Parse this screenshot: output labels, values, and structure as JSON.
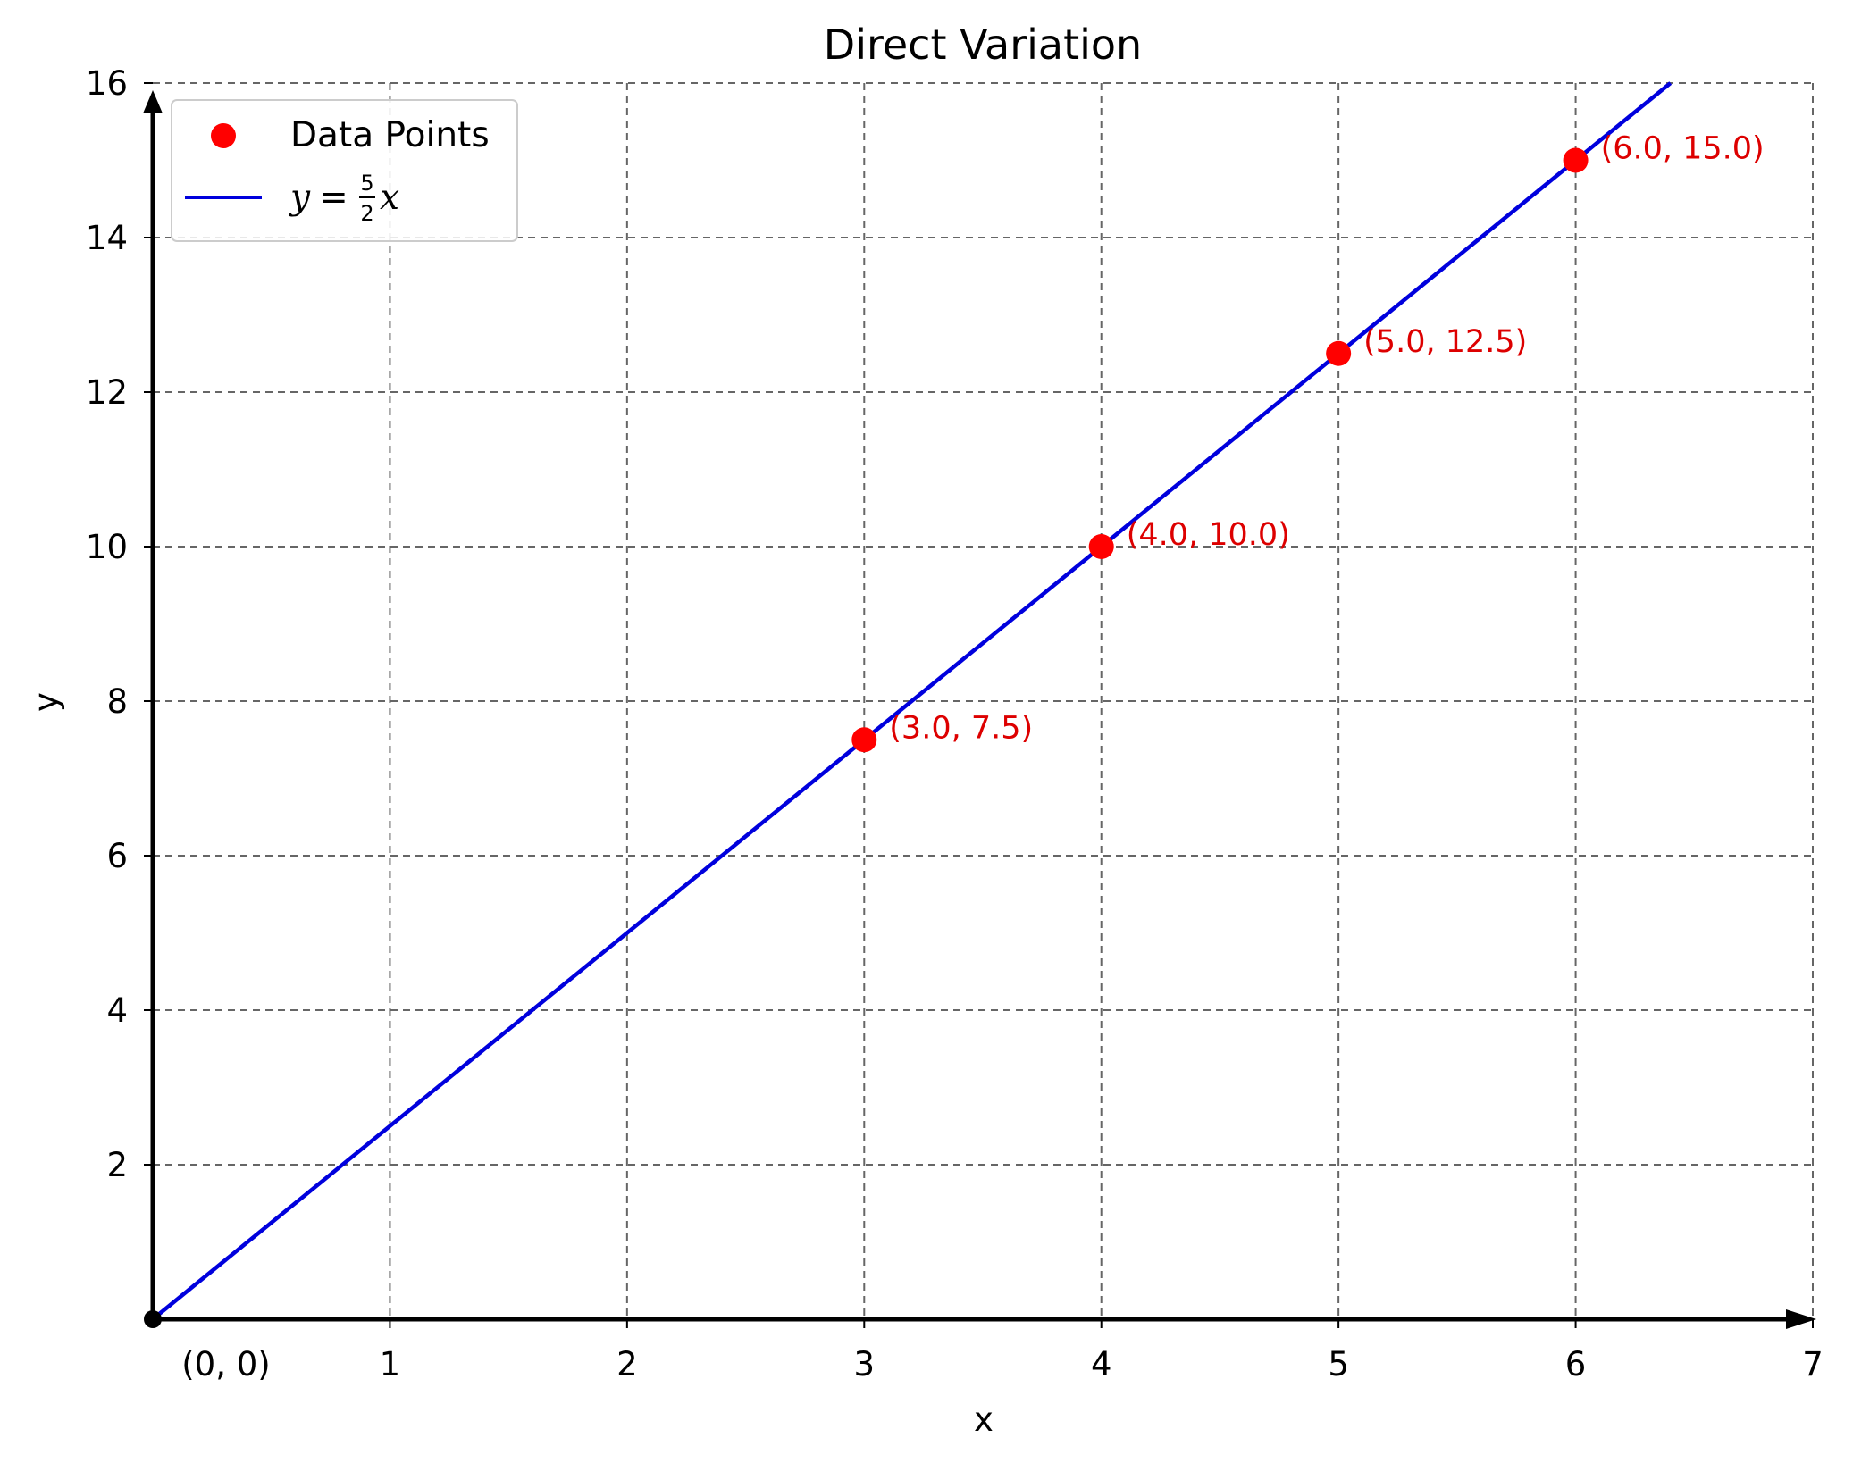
{
  "chart_data": {
    "type": "scatter",
    "title": "Direct Variation",
    "xlabel": "x",
    "ylabel": "y",
    "xlim": [
      0,
      7
    ],
    "ylim": [
      0,
      16
    ],
    "x_ticks": [
      1,
      2,
      3,
      4,
      5,
      6,
      7
    ],
    "y_ticks": [
      2,
      4,
      6,
      8,
      10,
      12,
      14,
      16
    ],
    "origin_label": "(0, 0)",
    "grid": true,
    "legend_position": "top-left",
    "series": [
      {
        "name": "Data Points",
        "kind": "scatter",
        "color": "#ff0000",
        "points": [
          {
            "x": 3.0,
            "y": 7.5,
            "label": "(3.0, 7.5)"
          },
          {
            "x": 4.0,
            "y": 10.0,
            "label": "(4.0, 10.0)"
          },
          {
            "x": 5.0,
            "y": 12.5,
            "label": "(5.0, 12.5)"
          },
          {
            "x": 6.0,
            "y": 15.0,
            "label": "(6.0, 15.0)"
          }
        ]
      },
      {
        "name": "y = 5/2 x",
        "kind": "line",
        "color": "#0000dd",
        "slope": 2.5,
        "x": [
          0,
          6.4
        ],
        "y": [
          0,
          16
        ]
      }
    ],
    "origin_point": {
      "x": 0,
      "y": 0
    }
  }
}
